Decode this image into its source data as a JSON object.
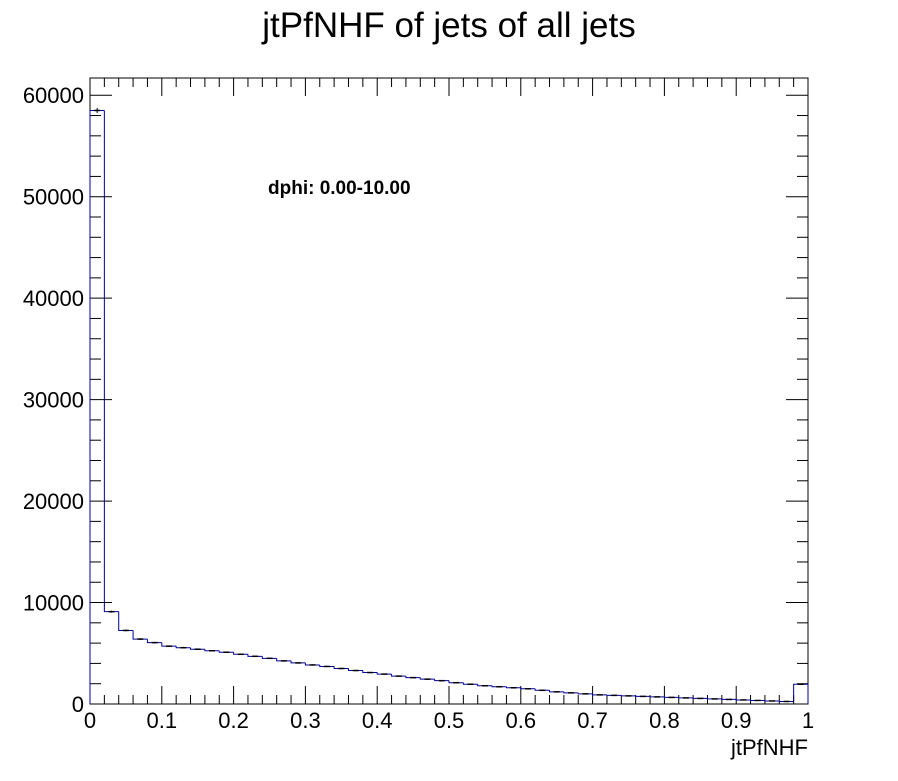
{
  "chart_data": {
    "type": "histogram",
    "title": "jtPfNHF of jets of all jets",
    "xlabel": "jtPfNHF",
    "ylabel": "",
    "annotation": "dphi: 0.00-10.00",
    "xlim": [
      0,
      1
    ],
    "ylim": [
      0,
      61700
    ],
    "x_ticks": [
      0,
      0.1,
      0.2,
      0.3,
      0.4,
      0.5,
      0.6,
      0.7,
      0.8,
      0.9,
      1
    ],
    "x_tick_labels": [
      "0",
      "0.1",
      "0.2",
      "0.3",
      "0.4",
      "0.5",
      "0.6",
      "0.7",
      "0.8",
      "0.9",
      "1"
    ],
    "y_ticks": [
      0,
      10000,
      20000,
      30000,
      40000,
      50000,
      60000
    ],
    "y_tick_labels": [
      "0",
      "10000",
      "20000",
      "30000",
      "40000",
      "50000",
      "60000"
    ],
    "bin_width": 0.02,
    "bin_start": 0,
    "values": [
      58500,
      9100,
      7250,
      6400,
      6050,
      5700,
      5550,
      5400,
      5250,
      5100,
      4900,
      4700,
      4500,
      4250,
      4050,
      3850,
      3700,
      3500,
      3300,
      3100,
      2950,
      2750,
      2600,
      2450,
      2300,
      2100,
      1950,
      1800,
      1700,
      1600,
      1500,
      1350,
      1200,
      1100,
      1000,
      900,
      850,
      800,
      750,
      700,
      650,
      600,
      550,
      500,
      450,
      400,
      350,
      300,
      250,
      1950
    ],
    "line_color": "#000099",
    "marker_color": "#000000",
    "grid": false,
    "legend": "none"
  }
}
